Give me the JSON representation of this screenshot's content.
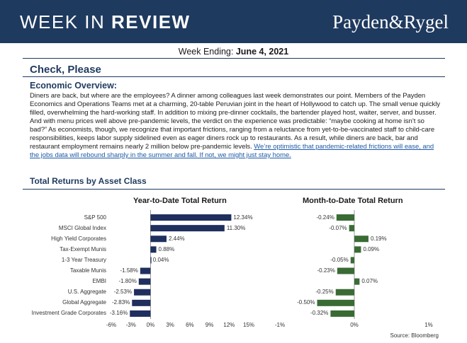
{
  "header": {
    "title_light": "WEEK IN ",
    "title_bold": "REVIEW",
    "brand": "Payden&Rygel"
  },
  "week": {
    "label": "Week Ending:",
    "date": "June 4, 2021"
  },
  "article": {
    "title": "Check, Please",
    "section": "Economic Overview:",
    "body": "Diners are back, but where are the employees? A dinner among colleagues last week demonstrates our point. Members of the Payden Economics and Operations Teams met at a charming, 20-table Peruvian joint in the heart of Hollywood to catch up. The small venue quickly filled, overwhelming the hard-working staff. In addition to mixing pre-dinner cocktails, the bartender played host, waiter, server, and busser. And with menu prices well above pre-pandemic levels, the verdict on the experience was predictable: “maybe cooking at home isn’t so bad?” As economists, though, we recognize that important frictions, ranging from a reluctance from yet-to-be-vaccinated staff to child-care responsibilities, keeps labor supply sidelined even as eager diners rock up to restaurants. As a result, while diners are back, bar and restaurant employment remains nearly 2 million below pre-pandemic levels. ",
    "link": "We’re optimistic that pandemic-related frictions will ease, and the jobs data will rebound sharply in the summer and fall. If not, we might just stay home."
  },
  "section_title": "Total Returns by Asset Class",
  "colors": {
    "navy": "#1f2f5e",
    "green": "#3a6b35",
    "header_bg": "#1f3a5f"
  },
  "chart_data": [
    {
      "type": "bar",
      "orientation": "horizontal",
      "title": "Year-to-Date Total Return",
      "categories": [
        "S&P 500",
        "MSCI Global Index",
        "High Yield Corporates",
        "Tax-Exempt Munis",
        "1-3 Year Treasury",
        "Taxable Munis",
        "EMBI",
        "U.S. Aggregate",
        "Global Aggregate",
        "Investment Grade Corporates"
      ],
      "values": [
        12.34,
        11.3,
        2.44,
        0.88,
        0.04,
        -1.58,
        -1.8,
        -2.53,
        -2.83,
        -3.16
      ],
      "value_labels": [
        "12.34%",
        "11.30%",
        "2.44%",
        "0.88%",
        "0.04%",
        "-1.58%",
        "-1.80%",
        "-2.53%",
        "-2.83%",
        "-3.16%"
      ],
      "xlim": [
        -6,
        15
      ],
      "ticks": [
        -6,
        -3,
        0,
        3,
        6,
        9,
        12,
        15
      ],
      "tick_labels": [
        "-6%",
        "-3%",
        "0%",
        "3%",
        "6%",
        "9%",
        "12%",
        "15%"
      ]
    },
    {
      "type": "bar",
      "orientation": "horizontal",
      "title": "Month-to-Date Total Return",
      "categories": [
        "S&P 500",
        "MSCI Global Index",
        "High Yield Corporates",
        "Tax-Exempt Munis",
        "1-3 Year Treasury",
        "Taxable Munis",
        "EMBI",
        "U.S. Aggregate",
        "Global Aggregate",
        "Investment Grade Corporates"
      ],
      "values": [
        -0.24,
        -0.07,
        0.19,
        0.09,
        -0.05,
        -0.23,
        0.07,
        -0.25,
        -0.5,
        -0.32
      ],
      "value_labels": [
        "-0.24%",
        "-0.07%",
        "0.19%",
        "0.09%",
        "-0.05%",
        "-0.23%",
        "0.07%",
        "-0.25%",
        "-0.50%",
        "-0.32%"
      ],
      "xlim": [
        -1,
        1
      ],
      "ticks": [
        -1,
        0,
        1
      ],
      "tick_labels": [
        "-1%",
        "0%",
        "1%"
      ]
    }
  ],
  "source": "Source: Bloomberg"
}
